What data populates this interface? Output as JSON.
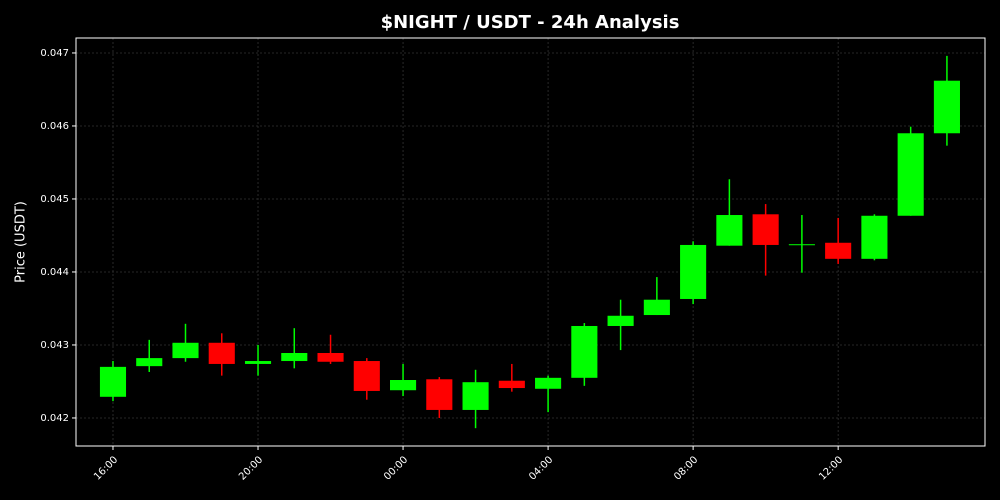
{
  "chart_data": {
    "type": "candlestick",
    "title": "$NIGHT / USDT - 24h Analysis",
    "y_label": "Price (USDT)",
    "x": [
      0,
      1,
      2,
      3,
      4,
      5,
      6,
      7,
      8,
      9,
      10,
      11,
      12,
      13,
      14,
      15,
      16,
      17,
      18,
      19,
      20,
      21,
      22,
      23
    ],
    "open": [
      0.04229,
      0.04271,
      0.04282,
      0.04303,
      0.04274,
      0.04278,
      0.04289,
      0.04278,
      0.04238,
      0.04253,
      0.04211,
      0.04251,
      0.0424,
      0.04255,
      0.04326,
      0.04341,
      0.04363,
      0.04436,
      0.04479,
      0.04437,
      0.0444,
      0.04418,
      0.04477,
      0.0459
    ],
    "high": [
      0.04278,
      0.04307,
      0.04329,
      0.04316,
      0.043,
      0.04323,
      0.04314,
      0.04282,
      0.04274,
      0.04256,
      0.04266,
      0.04274,
      0.04258,
      0.0433,
      0.04362,
      0.04393,
      0.04442,
      0.04527,
      0.04493,
      0.04478,
      0.04474,
      0.04479,
      0.04599,
      0.04696
    ],
    "low": [
      0.04223,
      0.04263,
      0.04277,
      0.04258,
      0.04258,
      0.04268,
      0.04274,
      0.04225,
      0.0423,
      0.042,
      0.04186,
      0.04236,
      0.04208,
      0.04244,
      0.04293,
      0.04341,
      0.04356,
      0.04436,
      0.04395,
      0.04399,
      0.04411,
      0.04416,
      0.04477,
      0.04573
    ],
    "close": [
      0.0427,
      0.04282,
      0.04303,
      0.04274,
      0.04278,
      0.04289,
      0.04277,
      0.04237,
      0.04252,
      0.04211,
      0.04249,
      0.04241,
      0.04255,
      0.04326,
      0.0434,
      0.04362,
      0.04437,
      0.04478,
      0.04437,
      0.04438,
      0.04418,
      0.04477,
      0.0459,
      0.04662
    ],
    "up_color": "#00ff00",
    "down_color": "#ff0000",
    "xlim": [
      -1.02,
      24.05
    ],
    "xticks": [
      {
        "value": 0,
        "label": "16:00"
      },
      {
        "value": 4,
        "label": "20:00"
      },
      {
        "value": 8,
        "label": "00:00"
      },
      {
        "value": 12,
        "label": "04:00"
      },
      {
        "value": 16,
        "label": "08:00"
      },
      {
        "value": 20,
        "label": "12:00"
      }
    ],
    "ylim": [
      0.041616,
      0.047205
    ],
    "yticks": [
      0.042,
      0.043,
      0.044,
      0.045,
      0.046,
      0.047
    ],
    "grid": true
  }
}
